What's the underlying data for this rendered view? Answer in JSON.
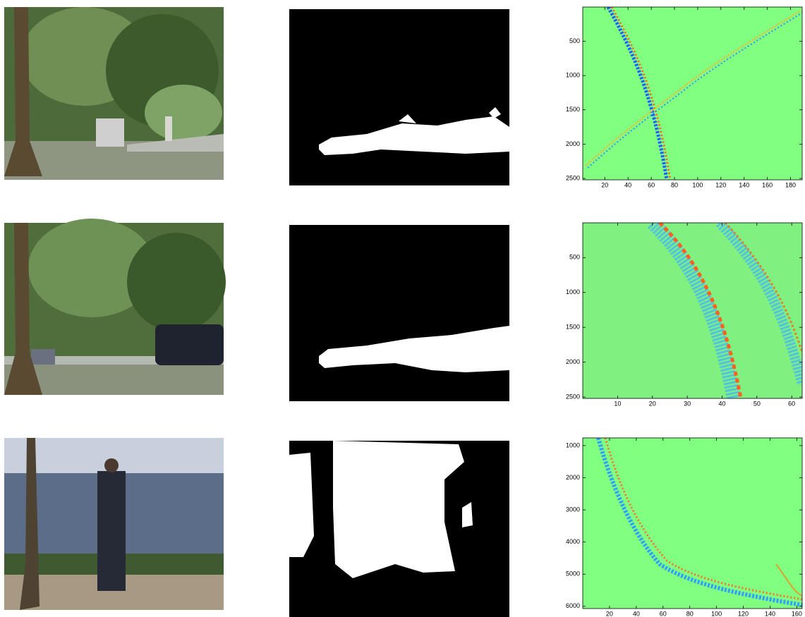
{
  "panels": [
    {
      "xlim": [
        1,
        190
      ],
      "ylim": [
        1,
        2520
      ],
      "xticks": [
        20,
        40,
        60,
        80,
        100,
        120,
        140,
        160,
        180
      ],
      "yticks": [
        500,
        1000,
        1500,
        2000,
        2500
      ]
    },
    {
      "xlim": [
        0,
        63
      ],
      "ylim": [
        1,
        2520
      ],
      "xticks": [
        10,
        20,
        30,
        40,
        50,
        60
      ],
      "yticks": [
        500,
        1000,
        1500,
        2000,
        2500
      ]
    },
    {
      "xlim": [
        0,
        164
      ],
      "ylim": [
        760,
        6070
      ],
      "xticks": [
        20,
        40,
        60,
        80,
        100,
        120,
        140,
        160
      ],
      "yticks": [
        1000,
        2000,
        3000,
        4000,
        5000,
        6000
      ]
    }
  ]
}
